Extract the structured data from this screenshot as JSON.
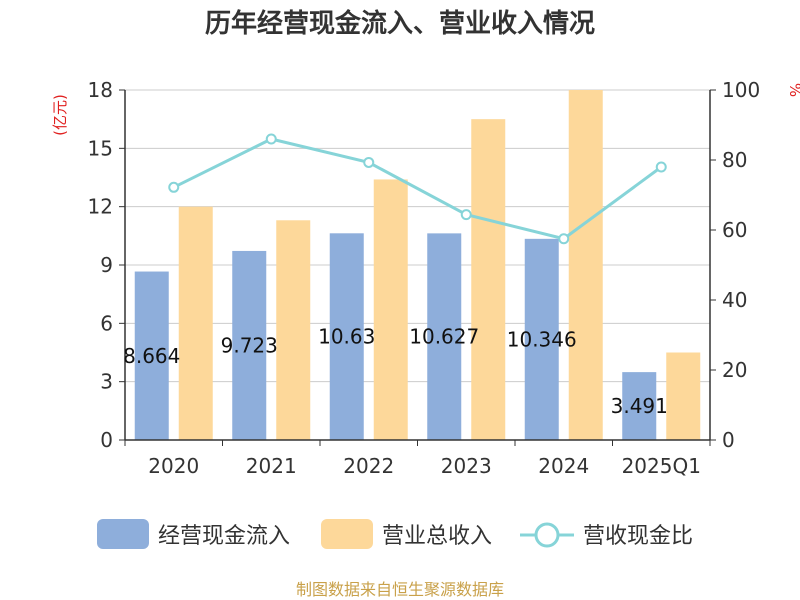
{
  "chart_data": {
    "type": "bar",
    "title": "历年经营现金流入、营业收入情况",
    "categories": [
      "2020",
      "2021",
      "2022",
      "2023",
      "2024",
      "2025Q1"
    ],
    "left_axis": {
      "unit": "(亿元)",
      "ylim": [
        0,
        18
      ],
      "ticks": [
        "0",
        "3",
        "6",
        "9",
        "12",
        "15",
        "18"
      ]
    },
    "right_axis": {
      "unit": "%",
      "ylim": [
        0,
        100
      ],
      "ticks": [
        "0",
        "20",
        "40",
        "60",
        "80",
        "100"
      ]
    },
    "grid": true,
    "legend_position": "bottom",
    "series": [
      {
        "name": "经营现金流入",
        "type": "bar",
        "axis": "left",
        "color": "#8eaedb",
        "values": [
          8.664,
          9.723,
          10.63,
          10.627,
          10.346,
          3.491
        ],
        "labels": [
          "8.664",
          "9.723",
          "10.63",
          "10.627",
          "10.346",
          "3.491"
        ]
      },
      {
        "name": "营业总收入",
        "type": "bar",
        "axis": "left",
        "color": "#fdd89a",
        "values": [
          12.0,
          11.3,
          13.4,
          16.5,
          18.0,
          4.5
        ]
      },
      {
        "name": "营收现金比",
        "type": "line",
        "axis": "right",
        "color": "#86d4d8",
        "values": [
          72.2,
          86.0,
          79.3,
          64.4,
          57.5,
          78.0
        ]
      }
    ],
    "source": "制图数据来自恒生聚源数据库"
  }
}
